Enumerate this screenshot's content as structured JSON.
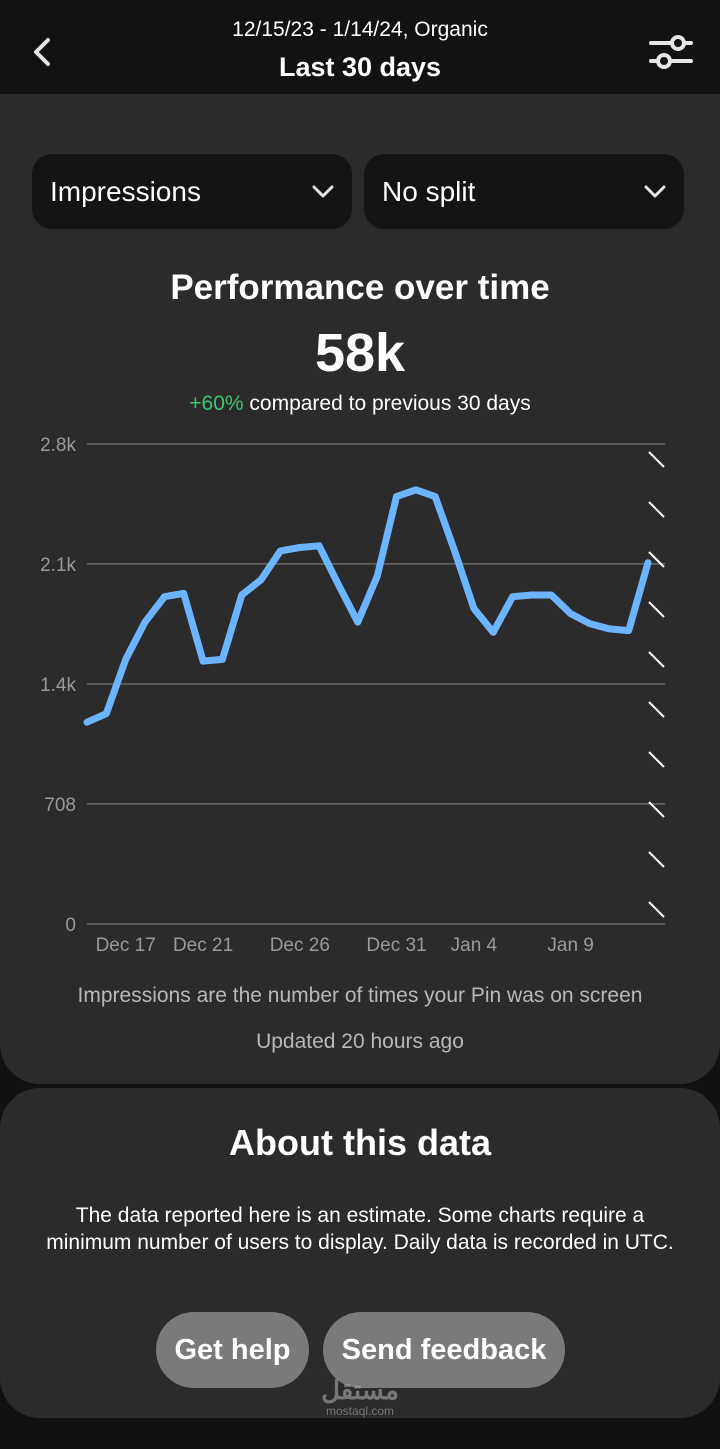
{
  "header": {
    "subtitle": "12/15/23 - 1/14/24, Organic",
    "title": "Last 30 days"
  },
  "controls": {
    "metric_dropdown": "Impressions",
    "split_dropdown": "No split"
  },
  "performance": {
    "title": "Performance over time",
    "total": "58k",
    "change": "+60%",
    "change_text": "compared to previous 30 days"
  },
  "chart_data": {
    "type": "line",
    "x": [
      "Dec 15",
      "Dec 16",
      "Dec 17",
      "Dec 18",
      "Dec 19",
      "Dec 20",
      "Dec 21",
      "Dec 22",
      "Dec 23",
      "Dec 24",
      "Dec 25",
      "Dec 26",
      "Dec 27",
      "Dec 28",
      "Dec 29",
      "Dec 30",
      "Dec 31",
      "Jan 1",
      "Jan 2",
      "Jan 3",
      "Jan 4",
      "Jan 5",
      "Jan 6",
      "Jan 7",
      "Jan 8",
      "Jan 9",
      "Jan 10",
      "Jan 11",
      "Jan 12",
      "Jan 13"
    ],
    "series": [
      {
        "values": [
          1190,
          1240,
          1560,
          1780,
          1930,
          1950,
          1550,
          1560,
          1940,
          2030,
          2200,
          2220,
          2230,
          2000,
          1780,
          2050,
          2520,
          2560,
          2520,
          2200,
          1860,
          1720,
          1930,
          1940,
          1940,
          1830,
          1770,
          1740,
          1730,
          2130
        ]
      }
    ],
    "x_tick_labels": [
      "Dec 17",
      "Dec 21",
      "Dec 26",
      "Dec 31",
      "Jan 4",
      "Jan 9"
    ],
    "y_tick_labels": [
      "0",
      "708",
      "1.4k",
      "2.1k",
      "2.8k"
    ],
    "ylim": [
      0,
      2830
    ],
    "grid": true,
    "line_color": "#6cb4ff",
    "incomplete_data_marker": "hatched right edge"
  },
  "footnotes": {
    "description": "Impressions are the number of times your Pin was on screen",
    "updated": "Updated 20 hours ago"
  },
  "about": {
    "title": "About this data",
    "body": "The data reported here is an estimate. Some charts require a minimum number of users to display. Daily data is recorded in UTC.",
    "help_button": "Get help",
    "feedback_button": "Send feedback"
  },
  "watermark": {
    "arabic": "مستقل",
    "latin": "mostaql.com"
  },
  "colors": {
    "background": "#111111",
    "card": "#2b2b2b",
    "accent_line": "#6cb4ff",
    "positive": "#3ec46d"
  }
}
